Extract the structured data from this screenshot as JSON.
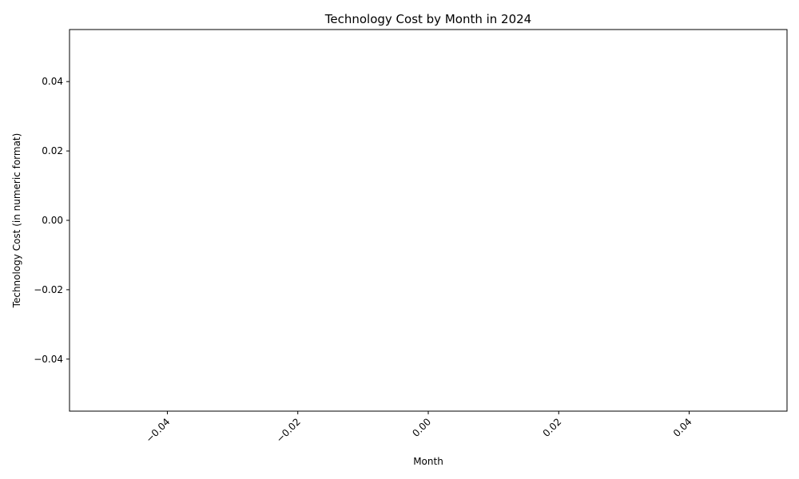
{
  "chart_data": {
    "type": "line",
    "title": "Technology Cost by Month in 2024",
    "xlabel": "Month",
    "ylabel": "Technology Cost (in numeric format)",
    "series": [],
    "xlim": [
      -0.055,
      0.055
    ],
    "ylim": [
      -0.055,
      0.055
    ],
    "xticks": [
      -0.04,
      -0.02,
      0.0,
      0.02,
      0.04
    ],
    "xtick_labels": [
      "−0.04",
      "−0.02",
      "0.00",
      "0.02",
      "0.04"
    ],
    "yticks": [
      -0.04,
      -0.02,
      0.0,
      0.02,
      0.04
    ],
    "ytick_labels": [
      "−0.04",
      "−0.02",
      "0.00",
      "0.02",
      "0.04"
    ],
    "xtick_rotation": 45,
    "grid": false,
    "legend": "none"
  }
}
